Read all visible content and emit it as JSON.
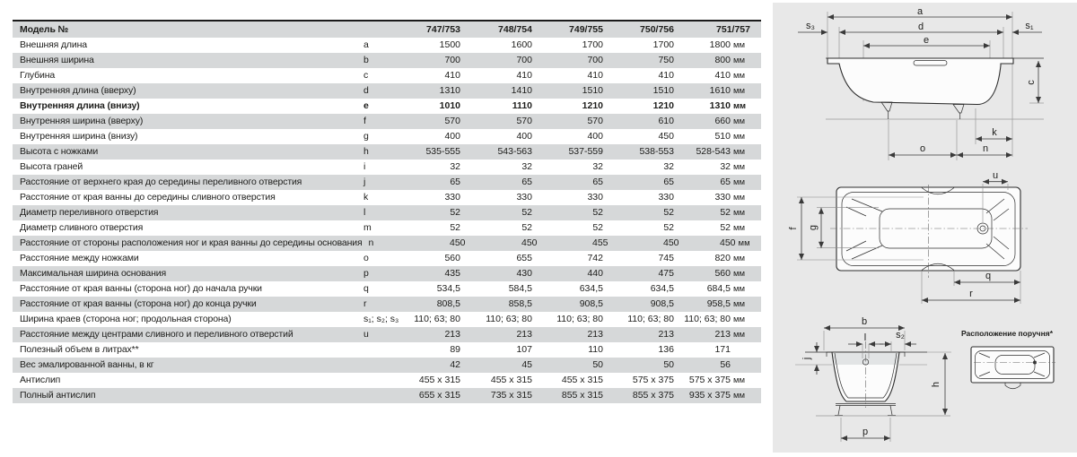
{
  "table": {
    "header": {
      "label": "Модель №",
      "models": [
        "747/753",
        "748/754",
        "749/755",
        "750/756",
        "751/757"
      ]
    },
    "rows": [
      {
        "label": "Внешняя длина",
        "letter": "a",
        "values": [
          "1500",
          "1600",
          "1700",
          "1700",
          "1800"
        ],
        "unit": "мм",
        "bold": false
      },
      {
        "label": "Внешняя ширина",
        "letter": "b",
        "values": [
          "700",
          "700",
          "700",
          "750",
          "800"
        ],
        "unit": "мм",
        "bold": false
      },
      {
        "label": "Глубина",
        "letter": "c",
        "values": [
          "410",
          "410",
          "410",
          "410",
          "410"
        ],
        "unit": "мм",
        "bold": false
      },
      {
        "label": "Внутренняя длина (вверху)",
        "letter": "d",
        "values": [
          "1310",
          "1410",
          "1510",
          "1510",
          "1610"
        ],
        "unit": "мм",
        "bold": false
      },
      {
        "label": "Внутренняя длина (внизу)",
        "letter": "e",
        "values": [
          "1010",
          "1110",
          "1210",
          "1210",
          "1310"
        ],
        "unit": "мм",
        "bold": true
      },
      {
        "label": "Внутренняя ширина (вверху)",
        "letter": "f",
        "values": [
          "570",
          "570",
          "570",
          "610",
          "660"
        ],
        "unit": "мм",
        "bold": false
      },
      {
        "label": "Внутренняя ширина (внизу)",
        "letter": "g",
        "values": [
          "400",
          "400",
          "400",
          "450",
          "510"
        ],
        "unit": "мм",
        "bold": false
      },
      {
        "label": "Высота с ножками",
        "letter": "h",
        "values": [
          "535-555",
          "543-563",
          "537-559",
          "538-553",
          "528-543"
        ],
        "unit": "мм",
        "bold": false
      },
      {
        "label": "Высота граней",
        "letter": "i",
        "values": [
          "32",
          "32",
          "32",
          "32",
          "32"
        ],
        "unit": "мм",
        "bold": false
      },
      {
        "label": "Расстояние от верхнего края до середины переливного отверстия",
        "letter": "j",
        "values": [
          "65",
          "65",
          "65",
          "65",
          "65"
        ],
        "unit": "мм",
        "bold": false
      },
      {
        "label": "Расстояние от края ванны до середины сливного отверстия",
        "letter": "k",
        "values": [
          "330",
          "330",
          "330",
          "330",
          "330"
        ],
        "unit": "мм",
        "bold": false
      },
      {
        "label": "Диаметр переливного отверстия",
        "letter": "l",
        "values": [
          "52",
          "52",
          "52",
          "52",
          "52"
        ],
        "unit": "мм",
        "bold": false
      },
      {
        "label": "Диаметр сливного отверстия",
        "letter": "m",
        "values": [
          "52",
          "52",
          "52",
          "52",
          "52"
        ],
        "unit": "мм",
        "bold": false
      },
      {
        "label": "Расстояние от стороны расположения ног и края ванны до середины основания",
        "letter": "n",
        "values": [
          "450",
          "450",
          "455",
          "450",
          "450"
        ],
        "unit": "мм",
        "bold": false
      },
      {
        "label": "Расстояние между ножками",
        "letter": "o",
        "values": [
          "560",
          "655",
          "742",
          "745",
          "820"
        ],
        "unit": "мм",
        "bold": false
      },
      {
        "label": "Максимальная ширина основания",
        "letter": "p",
        "values": [
          "435",
          "430",
          "440",
          "475",
          "560"
        ],
        "unit": "мм",
        "bold": false
      },
      {
        "label": "Расстояние от края ванны (сторона ног) до начала ручки",
        "letter": "q",
        "values": [
          "534,5",
          "584,5",
          "634,5",
          "634,5",
          "684,5"
        ],
        "unit": "мм",
        "bold": false
      },
      {
        "label": "Расстояние от края ванны (сторона ног) до конца ручки",
        "letter": "r",
        "values": [
          "808,5",
          "858,5",
          "908,5",
          "908,5",
          "958,5"
        ],
        "unit": "мм",
        "bold": false
      },
      {
        "label": "Ширина краев (сторона ног; продольная сторона)",
        "letter": "s₁; s₂; s₃",
        "values": [
          "110; 63; 80",
          "110; 63; 80",
          "110; 63; 80",
          "110; 63; 80",
          "110; 63; 80"
        ],
        "unit": "мм",
        "bold": false
      },
      {
        "label": "Расстояние между центрами сливного и переливного отверстий",
        "letter": "u",
        "values": [
          "213",
          "213",
          "213",
          "213",
          "213"
        ],
        "unit": "мм",
        "bold": false
      },
      {
        "label": "Полезный объем в литрах**",
        "letter": "",
        "values": [
          "89",
          "107",
          "110",
          "136",
          "171"
        ],
        "unit": "",
        "bold": false
      },
      {
        "label": "Вес эмалированной ванны, в кг",
        "letter": "",
        "values": [
          "42",
          "45",
          "50",
          "50",
          "56"
        ],
        "unit": "",
        "bold": false
      },
      {
        "label": "Антислип",
        "letter": "",
        "values": [
          "455 x 315",
          "455 x 315",
          "455 x 315",
          "575 x 375",
          "575 x 375"
        ],
        "unit": "мм",
        "bold": false
      },
      {
        "label": "Полный антислип",
        "letter": "",
        "values": [
          "655 x 315",
          "735 x 315",
          "855 x 315",
          "855 x 375",
          "935 x 375"
        ],
        "unit": "мм",
        "bold": false
      }
    ]
  },
  "diagrams": {
    "caption_handle": "Расположение поручня*",
    "labels": {
      "side": {
        "a": "a",
        "d": "d",
        "e": "e",
        "s3": "s₃",
        "s1": "s₁",
        "c": "c",
        "k": "k",
        "o": "o",
        "n": "n"
      },
      "top": {
        "u": "u",
        "f": "f",
        "g": "g",
        "q": "q",
        "r": "r"
      },
      "end": {
        "b": "b",
        "l": "l",
        "s2": "s₂",
        "j": "j",
        "h": "h",
        "p": "p"
      }
    }
  },
  "colors": {
    "row_shade": "#d6d8d9",
    "panel_bg": "#e8e8e8",
    "line": "#3a3a3a",
    "text": "#1d1d1b"
  }
}
